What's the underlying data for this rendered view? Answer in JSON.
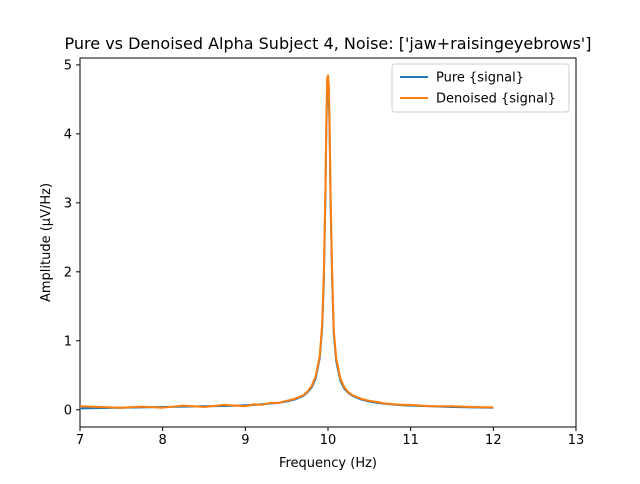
{
  "chart_data": {
    "type": "line",
    "title": "Pure vs Denoised Alpha Subject 4, Noise: ['jaw+raisingeyebrows']",
    "xlabel": "Frequency (Hz)",
    "ylabel": "Amplitude (μV/Hz)",
    "xlim": [
      7,
      13
    ],
    "ylim": [
      -0.25,
      5.1
    ],
    "xticks": [
      "7",
      "8",
      "9",
      "10",
      "11",
      "12",
      "13"
    ],
    "yticks": [
      "0",
      "1",
      "2",
      "3",
      "4",
      "5"
    ],
    "grid": false,
    "legend_position": "upper right",
    "x": [
      7.0,
      7.25,
      7.5,
      7.75,
      8.0,
      8.25,
      8.5,
      8.75,
      9.0,
      9.1,
      9.2,
      9.3,
      9.4,
      9.5,
      9.6,
      9.7,
      9.75,
      9.8,
      9.85,
      9.9,
      9.93,
      9.95,
      9.97,
      9.98,
      9.99,
      10.0,
      10.01,
      10.02,
      10.03,
      10.05,
      10.07,
      10.1,
      10.15,
      10.2,
      10.25,
      10.3,
      10.4,
      10.5,
      10.6,
      10.7,
      10.8,
      10.9,
      11.0,
      11.25,
      11.5,
      11.75,
      12.0
    ],
    "series": [
      {
        "name": "Pure {signal}",
        "color": "#1f77b4",
        "values": [
          0.02,
          0.025,
          0.03,
          0.035,
          0.04,
          0.045,
          0.05,
          0.055,
          0.065,
          0.07,
          0.08,
          0.09,
          0.1,
          0.12,
          0.15,
          0.2,
          0.25,
          0.32,
          0.45,
          0.75,
          1.2,
          1.9,
          3.2,
          4.1,
          4.6,
          4.75,
          4.6,
          4.0,
          3.1,
          1.9,
          1.1,
          0.7,
          0.42,
          0.3,
          0.24,
          0.2,
          0.15,
          0.12,
          0.1,
          0.085,
          0.075,
          0.065,
          0.06,
          0.05,
          0.04,
          0.035,
          0.03
        ]
      },
      {
        "name": "Denoised {signal}",
        "color": "#ff7f0e",
        "values": [
          0.05,
          0.04,
          0.03,
          0.045,
          0.03,
          0.06,
          0.04,
          0.07,
          0.05,
          0.08,
          0.07,
          0.1,
          0.1,
          0.13,
          0.16,
          0.21,
          0.26,
          0.34,
          0.48,
          0.78,
          1.25,
          2.0,
          3.3,
          4.2,
          4.8,
          4.85,
          4.7,
          4.1,
          3.2,
          2.0,
          1.15,
          0.74,
          0.45,
          0.32,
          0.25,
          0.21,
          0.16,
          0.13,
          0.11,
          0.09,
          0.08,
          0.07,
          0.07,
          0.05,
          0.05,
          0.04,
          0.035
        ]
      }
    ]
  }
}
